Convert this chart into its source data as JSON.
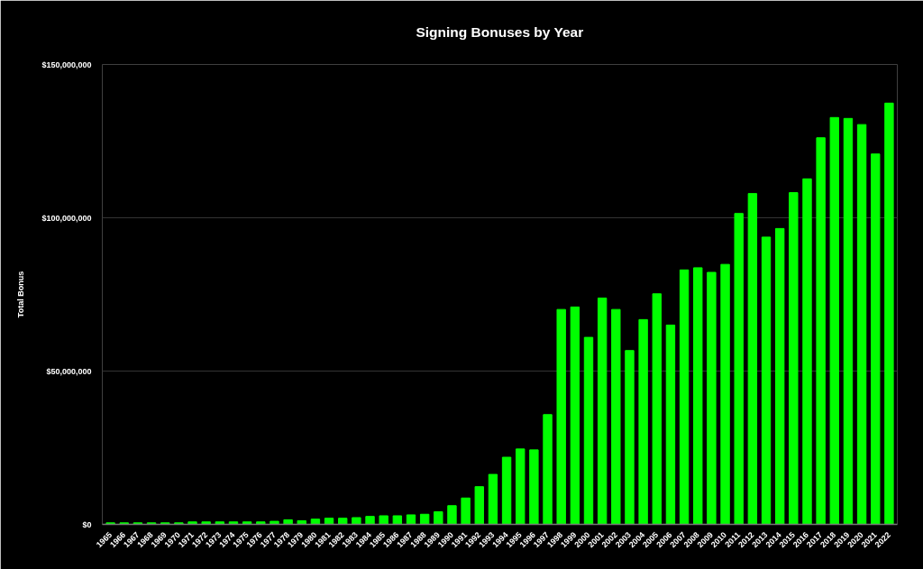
{
  "chart_data": {
    "type": "bar",
    "title": "Signing Bonuses by Year",
    "ylabel": "Total Bonus",
    "categories": [
      "1965",
      "1966",
      "1967",
      "1968",
      "1969",
      "1970",
      "1971",
      "1972",
      "1973",
      "1974",
      "1975",
      "1976",
      "1977",
      "1978",
      "1979",
      "1980",
      "1981",
      "1982",
      "1983",
      "1984",
      "1985",
      "1986",
      "1987",
      "1988",
      "1989",
      "1990",
      "1991",
      "1992",
      "1993",
      "1994",
      "1995",
      "1996",
      "1997",
      "1998",
      "1999",
      "2000",
      "2001",
      "2002",
      "2003",
      "2004",
      "2005",
      "2006",
      "2007",
      "2008",
      "2009",
      "2010",
      "2011",
      "2012",
      "2013",
      "2014",
      "2015",
      "2016",
      "2017",
      "2018",
      "2019",
      "2020",
      "2021",
      "2022"
    ],
    "values": [
      500000,
      500000,
      500000,
      500000,
      500000,
      500000,
      800000,
      800000,
      800000,
      800000,
      800000,
      800000,
      1000000,
      1500000,
      1200000,
      1700000,
      2000000,
      2000000,
      2200000,
      2600000,
      2800000,
      2800000,
      3100000,
      3300000,
      4100000,
      6100000,
      8600000,
      12300000,
      16300000,
      21900000,
      24600000,
      24300000,
      35800000,
      70100000,
      70900000,
      61000000,
      73800000,
      70100000,
      56700000,
      66800000,
      75200000,
      65000000,
      83000000,
      83700000,
      82200000,
      84800000,
      101400000,
      107900000,
      93700000,
      96500000,
      108200000,
      112700000,
      126100000,
      132700000,
      132400000,
      130400000,
      120800000,
      137400000
    ],
    "color": "#00ff00",
    "ylim": [
      0,
      150000000
    ],
    "yticks": [
      {
        "value": 0,
        "label": "$0"
      },
      {
        "value": 50000000,
        "label": "$50,000,000"
      },
      {
        "value": 100000000,
        "label": "$100,000,000"
      },
      {
        "value": 150000000,
        "label": "$150,000,000"
      }
    ],
    "grid": "y"
  }
}
